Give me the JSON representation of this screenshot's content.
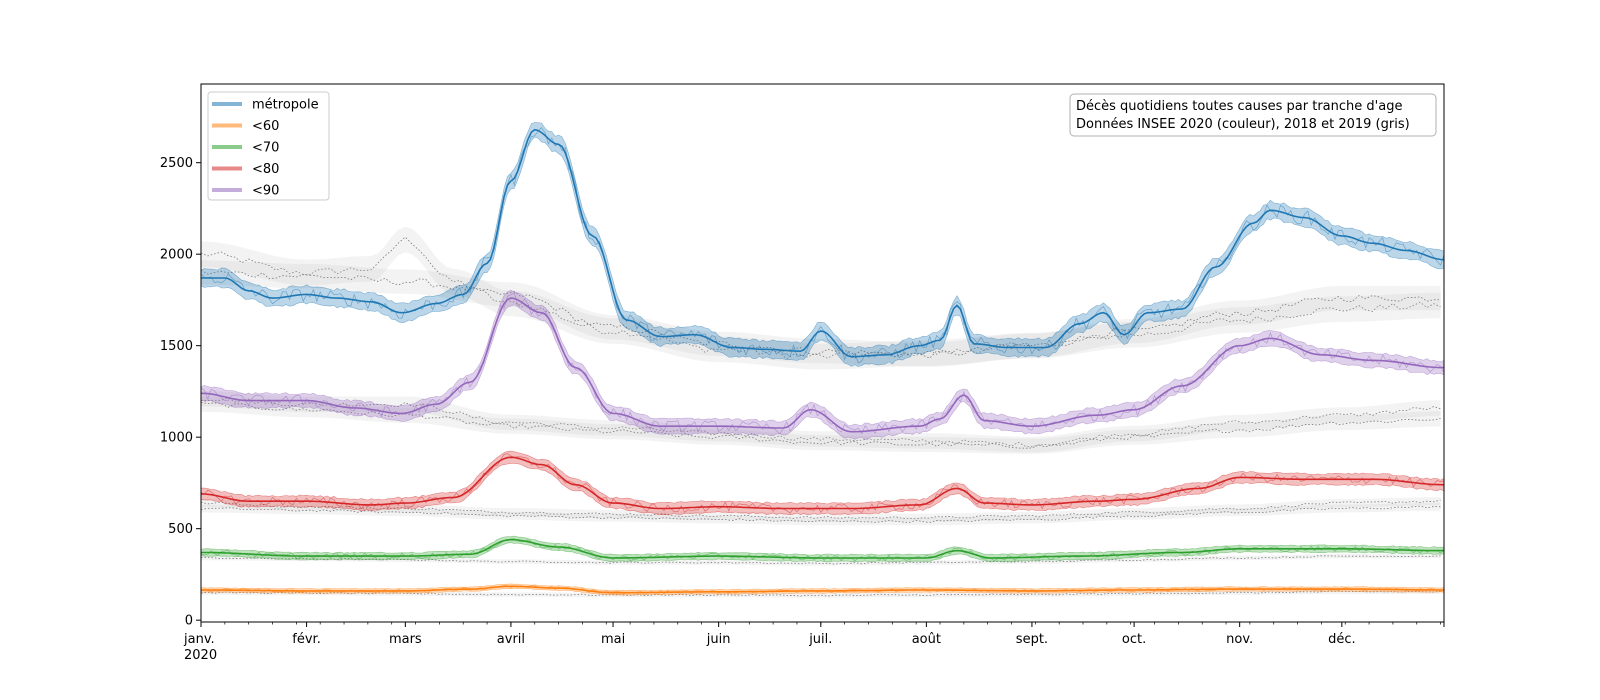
{
  "chart_data": {
    "type": "line",
    "annotation": [
      "Décès quotidiens toutes causes par tranche d'age",
      "Données INSEE 2020 (couleur), 2018 et 2019 (gris)"
    ],
    "x_start": "2020-01-01",
    "x_end": "2020-12-31",
    "x_ticks": [
      {
        "date": "2020-01-01",
        "label": "janv.",
        "sublabel": "2020"
      },
      {
        "date": "2020-02-01",
        "label": "févr."
      },
      {
        "date": "2020-03-01",
        "label": "mars"
      },
      {
        "date": "2020-04-01",
        "label": "avril"
      },
      {
        "date": "2020-05-01",
        "label": "mai"
      },
      {
        "date": "2020-06-01",
        "label": "juin"
      },
      {
        "date": "2020-07-01",
        "label": "juil."
      },
      {
        "date": "2020-08-01",
        "label": "août"
      },
      {
        "date": "2020-09-01",
        "label": "sept."
      },
      {
        "date": "2020-10-01",
        "label": "oct."
      },
      {
        "date": "2020-11-01",
        "label": "nov."
      },
      {
        "date": "2020-12-01",
        "label": "déc."
      }
    ],
    "ylim": [
      -10,
      2930
    ],
    "y_ticks": [
      0,
      500,
      1000,
      1500,
      2000,
      2500
    ],
    "legend_position": "top-left",
    "series": [
      {
        "name": "métropole",
        "color": "#1f77b4",
        "band": 55,
        "x": [
          "2020-01-01",
          "2020-01-08",
          "2020-01-15",
          "2020-01-22",
          "2020-02-01",
          "2020-02-10",
          "2020-02-20",
          "2020-02-29",
          "2020-03-10",
          "2020-03-18",
          "2020-03-25",
          "2020-04-01",
          "2020-04-08",
          "2020-04-15",
          "2020-04-25",
          "2020-05-05",
          "2020-05-15",
          "2020-05-25",
          "2020-06-05",
          "2020-06-15",
          "2020-06-25",
          "2020-07-01",
          "2020-07-10",
          "2020-07-20",
          "2020-07-30",
          "2020-08-05",
          "2020-08-10",
          "2020-08-15",
          "2020-08-25",
          "2020-09-05",
          "2020-09-15",
          "2020-09-22",
          "2020-09-28",
          "2020-10-05",
          "2020-10-15",
          "2020-10-25",
          "2020-11-05",
          "2020-11-10",
          "2020-11-20",
          "2020-12-01",
          "2020-12-10",
          "2020-12-20",
          "2020-12-31"
        ],
        "y": [
          1870,
          1870,
          1800,
          1760,
          1780,
          1760,
          1740,
          1680,
          1730,
          1780,
          1950,
          2400,
          2680,
          2600,
          2100,
          1640,
          1550,
          1560,
          1490,
          1480,
          1470,
          1580,
          1440,
          1450,
          1500,
          1530,
          1720,
          1510,
          1490,
          1490,
          1620,
          1680,
          1560,
          1680,
          1700,
          1930,
          2170,
          2240,
          2200,
          2100,
          2060,
          2020,
          1970
        ]
      },
      {
        "name": "<90",
        "color": "#9467bd",
        "band": 45,
        "x": [
          "2020-01-01",
          "2020-01-15",
          "2020-02-01",
          "2020-02-15",
          "2020-02-29",
          "2020-03-10",
          "2020-03-20",
          "2020-04-01",
          "2020-04-10",
          "2020-04-20",
          "2020-05-01",
          "2020-05-15",
          "2020-06-01",
          "2020-06-20",
          "2020-06-28",
          "2020-07-10",
          "2020-07-30",
          "2020-08-05",
          "2020-08-12",
          "2020-08-18",
          "2020-09-01",
          "2020-09-20",
          "2020-10-01",
          "2020-10-15",
          "2020-11-01",
          "2020-11-10",
          "2020-11-25",
          "2020-12-10",
          "2020-12-31"
        ],
        "y": [
          1240,
          1200,
          1200,
          1160,
          1130,
          1180,
          1300,
          1760,
          1680,
          1380,
          1130,
          1060,
          1060,
          1050,
          1150,
          1030,
          1060,
          1100,
          1230,
          1090,
          1060,
          1120,
          1150,
          1280,
          1500,
          1540,
          1450,
          1420,
          1380
        ]
      },
      {
        "name": "<80",
        "color": "#d62728",
        "band": 35,
        "x": [
          "2020-01-01",
          "2020-01-15",
          "2020-02-01",
          "2020-02-20",
          "2020-03-01",
          "2020-03-15",
          "2020-04-01",
          "2020-04-10",
          "2020-04-20",
          "2020-05-01",
          "2020-05-15",
          "2020-06-01",
          "2020-06-20",
          "2020-07-10",
          "2020-07-30",
          "2020-08-10",
          "2020-08-18",
          "2020-09-01",
          "2020-09-20",
          "2020-10-01",
          "2020-10-20",
          "2020-11-01",
          "2020-11-20",
          "2020-12-10",
          "2020-12-31"
        ],
        "y": [
          690,
          650,
          650,
          630,
          640,
          670,
          890,
          850,
          740,
          640,
          610,
          620,
          610,
          610,
          630,
          720,
          640,
          630,
          650,
          660,
          720,
          780,
          770,
          770,
          740
        ]
      },
      {
        "name": "<70",
        "color": "#2ca02c",
        "band": 22,
        "x": [
          "2020-01-01",
          "2020-02-01",
          "2020-03-01",
          "2020-03-20",
          "2020-04-01",
          "2020-04-15",
          "2020-05-01",
          "2020-06-01",
          "2020-07-01",
          "2020-08-01",
          "2020-08-10",
          "2020-08-20",
          "2020-09-15",
          "2020-10-15",
          "2020-11-01",
          "2020-12-01",
          "2020-12-31"
        ],
        "y": [
          370,
          350,
          350,
          360,
          440,
          400,
          340,
          350,
          340,
          340,
          380,
          340,
          350,
          370,
          390,
          390,
          380
        ]
      },
      {
        "name": "<60",
        "color": "#ff7f0e",
        "band": 14,
        "x": [
          "2020-01-01",
          "2020-02-01",
          "2020-03-01",
          "2020-03-20",
          "2020-04-01",
          "2020-04-15",
          "2020-05-01",
          "2020-06-01",
          "2020-07-01",
          "2020-08-01",
          "2020-09-01",
          "2020-10-01",
          "2020-11-01",
          "2020-12-01",
          "2020-12-31"
        ],
        "y": [
          165,
          160,
          160,
          170,
          185,
          175,
          150,
          155,
          160,
          165,
          160,
          165,
          170,
          170,
          165
        ]
      }
    ],
    "reference_series": [
      {
        "x": [
          "2020-01-01",
          "2020-02-01",
          "2020-02-20",
          "2020-03-01",
          "2020-03-15",
          "2020-04-01",
          "2020-05-01",
          "2020-06-01",
          "2020-07-01",
          "2020-08-01",
          "2020-09-01",
          "2020-10-01",
          "2020-11-01",
          "2020-12-01",
          "2020-12-31"
        ],
        "y": [
          2000,
          1900,
          1920,
          2080,
          1850,
          1730,
          1580,
          1480,
          1440,
          1460,
          1500,
          1560,
          1640,
          1700,
          1720
        ]
      },
      {
        "x": [
          "2020-01-01",
          "2020-02-01",
          "2020-03-01",
          "2020-04-01",
          "2020-05-01",
          "2020-06-01",
          "2020-07-01",
          "2020-08-01",
          "2020-09-01",
          "2020-10-01",
          "2020-11-01",
          "2020-12-01",
          "2020-12-31"
        ],
        "y": [
          1900,
          1880,
          1850,
          1780,
          1600,
          1510,
          1470,
          1450,
          1500,
          1580,
          1680,
          1760,
          1760
        ]
      },
      {
        "x": [
          "2020-01-01",
          "2020-02-01",
          "2020-03-01",
          "2020-04-01",
          "2020-05-01",
          "2020-06-01",
          "2020-07-01",
          "2020-08-01",
          "2020-09-01",
          "2020-10-01",
          "2020-11-01",
          "2020-12-01",
          "2020-12-31"
        ],
        "y": [
          1210,
          1180,
          1180,
          1080,
          1050,
          1020,
          990,
          980,
          960,
          1020,
          1080,
          1120,
          1160
        ]
      },
      {
        "x": [
          "2020-01-01",
          "2020-02-01",
          "2020-03-01",
          "2020-04-01",
          "2020-05-01",
          "2020-06-01",
          "2020-07-01",
          "2020-08-01",
          "2020-09-01",
          "2020-10-01",
          "2020-11-01",
          "2020-12-01",
          "2020-12-31"
        ],
        "y": [
          1180,
          1150,
          1120,
          1060,
          1030,
          1000,
          970,
          960,
          950,
          1000,
          1040,
          1080,
          1100
        ]
      },
      {
        "x": [
          "2020-01-01",
          "2020-02-01",
          "2020-03-01",
          "2020-04-01",
          "2020-05-01",
          "2020-06-01",
          "2020-07-01",
          "2020-08-01",
          "2020-09-01",
          "2020-10-01",
          "2020-11-01",
          "2020-12-01",
          "2020-12-31"
        ],
        "y": [
          640,
          620,
          610,
          590,
          580,
          570,
          560,
          560,
          570,
          590,
          610,
          640,
          650
        ]
      },
      {
        "x": [
          "2020-01-01",
          "2020-02-01",
          "2020-03-01",
          "2020-04-01",
          "2020-05-01",
          "2020-06-01",
          "2020-07-01",
          "2020-08-01",
          "2020-09-01",
          "2020-10-01",
          "2020-11-01",
          "2020-12-01",
          "2020-12-31"
        ],
        "y": [
          610,
          600,
          590,
          570,
          560,
          550,
          540,
          540,
          550,
          570,
          590,
          610,
          620
        ]
      },
      {
        "x": [
          "2020-01-01",
          "2020-02-01",
          "2020-03-01",
          "2020-04-01",
          "2020-05-01",
          "2020-06-01",
          "2020-07-01",
          "2020-08-01",
          "2020-09-01",
          "2020-10-01",
          "2020-11-01",
          "2020-12-01",
          "2020-12-31"
        ],
        "y": [
          340,
          335,
          330,
          320,
          315,
          315,
          310,
          315,
          320,
          330,
          340,
          350,
          350
        ]
      },
      {
        "x": [
          "2020-01-01",
          "2020-02-01",
          "2020-03-01",
          "2020-04-01",
          "2020-05-01",
          "2020-06-01",
          "2020-07-01",
          "2020-08-01",
          "2020-09-01",
          "2020-10-01",
          "2020-11-01",
          "2020-12-01",
          "2020-12-31"
        ],
        "y": [
          150,
          148,
          145,
          140,
          138,
          138,
          135,
          138,
          140,
          145,
          150,
          155,
          155
        ]
      }
    ]
  }
}
